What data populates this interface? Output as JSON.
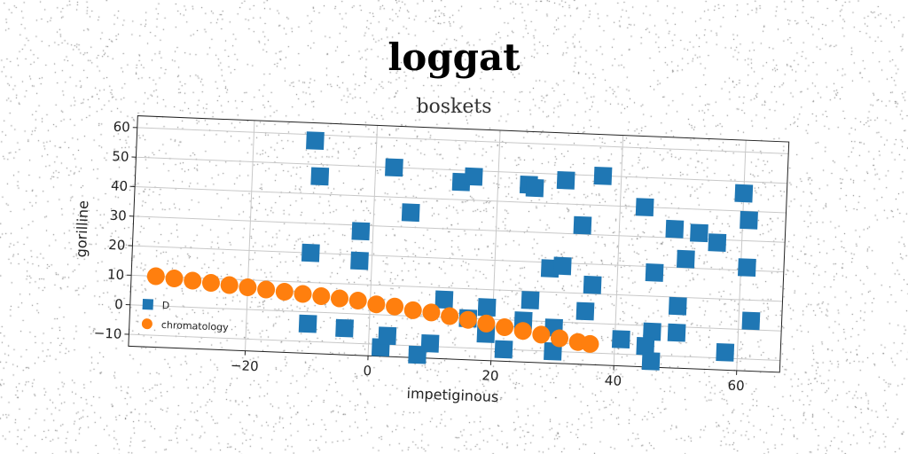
{
  "title": "loggat",
  "subtitle": "boskets",
  "chart_data": {
    "type": "scatter",
    "title": "loggat",
    "subtitle": "boskets",
    "xlabel": "impetiginous",
    "ylabel": "gorilline",
    "xlim": [
      -39,
      67
    ],
    "ylim": [
      -14,
      64
    ],
    "xticks": [
      -20,
      0,
      20,
      40,
      60
    ],
    "yticks": [
      -10,
      0,
      10,
      20,
      30,
      40,
      50,
      60
    ],
    "grid": true,
    "legend_position": "lower-left",
    "series": [
      {
        "name": "D",
        "marker": "square",
        "color": "#1f77b4",
        "points": [
          [
            -10,
            58
          ],
          [
            -9,
            46
          ],
          [
            3,
            50
          ],
          [
            6,
            35
          ],
          [
            -2,
            28
          ],
          [
            -10,
            20
          ],
          [
            -2,
            18
          ],
          [
            -10,
            -4
          ],
          [
            -4,
            -5
          ],
          [
            2,
            -11
          ],
          [
            3,
            -7
          ],
          [
            8,
            -13
          ],
          [
            10,
            -9
          ],
          [
            12,
            6
          ],
          [
            14,
            46
          ],
          [
            16,
            48
          ],
          [
            16,
            0
          ],
          [
            19,
            4
          ],
          [
            19,
            -5
          ],
          [
            22,
            -10
          ],
          [
            25,
            46
          ],
          [
            26,
            45
          ],
          [
            25,
            0
          ],
          [
            26,
            7
          ],
          [
            29,
            18
          ],
          [
            31,
            19
          ],
          [
            30,
            -2
          ],
          [
            30,
            -10
          ],
          [
            31,
            48
          ],
          [
            34,
            33
          ],
          [
            35,
            4
          ],
          [
            36,
            13
          ],
          [
            37,
            50
          ],
          [
            41,
            -5
          ],
          [
            44,
            40
          ],
          [
            46,
            18
          ],
          [
            46,
            -2
          ],
          [
            45,
            -7
          ],
          [
            46,
            -12
          ],
          [
            49,
            33
          ],
          [
            50,
            7
          ],
          [
            50,
            -2
          ],
          [
            51,
            23
          ],
          [
            53,
            32
          ],
          [
            56,
            29
          ],
          [
            58,
            -8
          ],
          [
            60,
            46
          ],
          [
            61,
            37
          ],
          [
            61,
            21
          ],
          [
            62,
            3
          ]
        ]
      },
      {
        "name": "chromatology",
        "marker": "circle",
        "color": "#ff7f0e",
        "points": [
          [
            -35,
            10
          ],
          [
            -32,
            9.5
          ],
          [
            -29,
            9
          ],
          [
            -26,
            8.5
          ],
          [
            -23,
            8
          ],
          [
            -20,
            7.5
          ],
          [
            -17,
            7
          ],
          [
            -14,
            6.5
          ],
          [
            -11,
            6
          ],
          [
            -8,
            5.5
          ],
          [
            -5,
            5
          ],
          [
            -2,
            4.5
          ],
          [
            1,
            3.5
          ],
          [
            4,
            3
          ],
          [
            7,
            2
          ],
          [
            10,
            1.5
          ],
          [
            13,
            0.5
          ],
          [
            16,
            -0.5
          ],
          [
            19,
            -1.5
          ],
          [
            22,
            -2.5
          ],
          [
            25,
            -3.5
          ],
          [
            28,
            -4.5
          ],
          [
            31,
            -5.5
          ],
          [
            34,
            -6.5
          ],
          [
            36,
            -7
          ]
        ]
      }
    ]
  }
}
